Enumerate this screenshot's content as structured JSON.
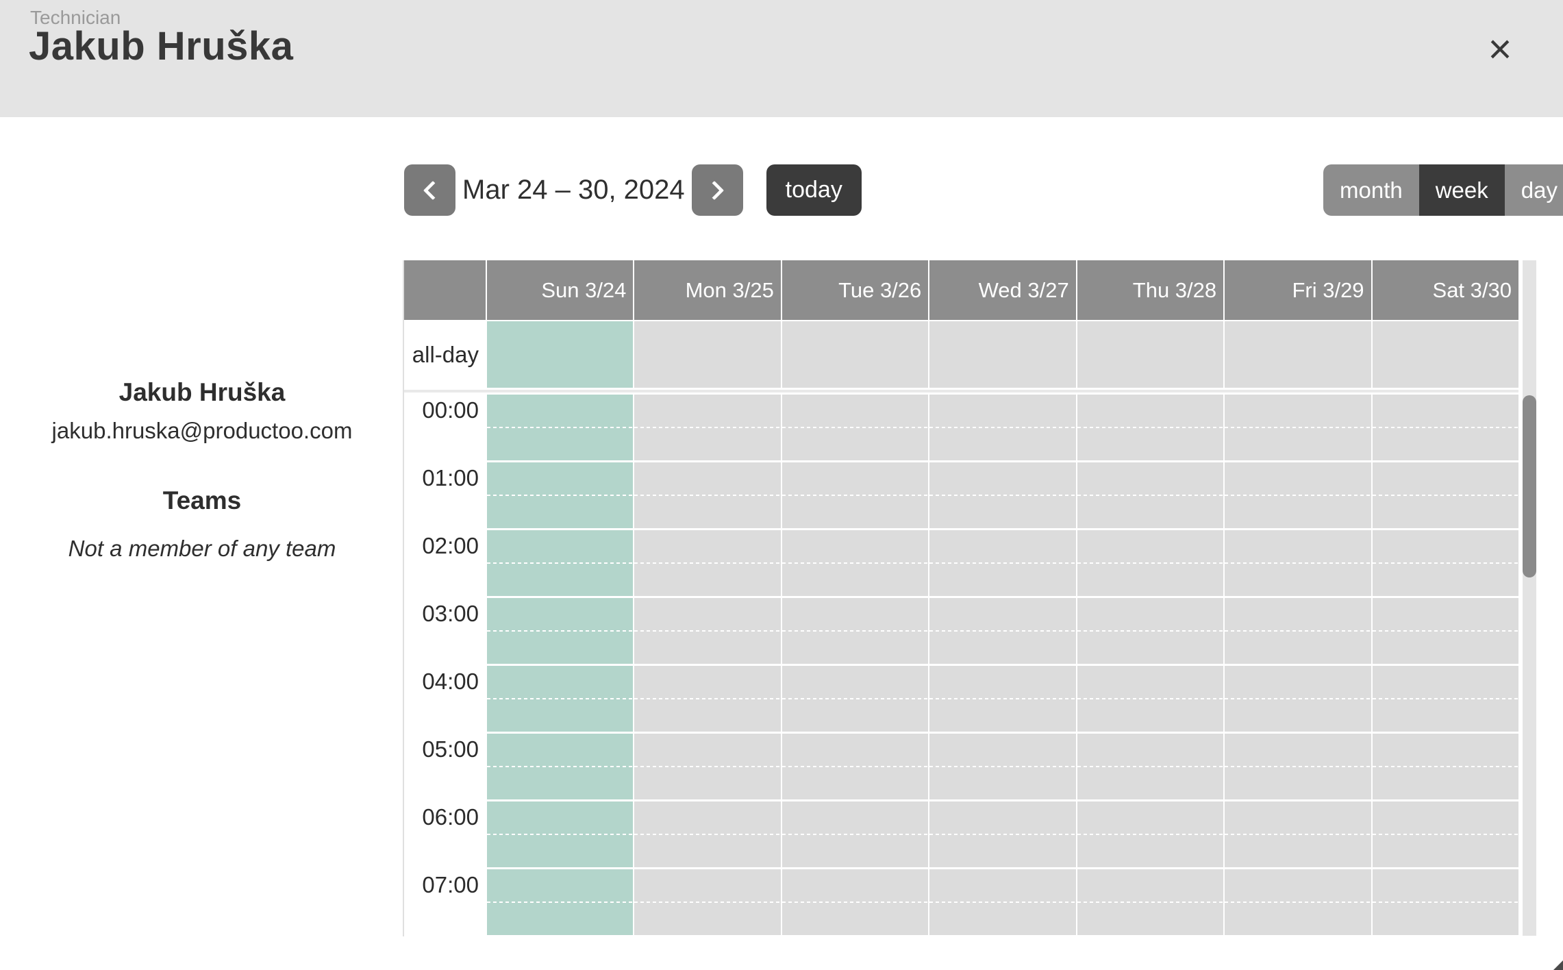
{
  "header": {
    "eyebrow": "Technician",
    "title": "Jakub Hruška"
  },
  "icons": {
    "close": "×",
    "prev": "chevron-left",
    "next": "chevron-right",
    "resize": "diagonal-resize-grip"
  },
  "profile": {
    "name": "Jakub Hruška",
    "email": "jakub.hruska@productoo.com",
    "teams_heading": "Teams",
    "teams_empty": "Not a member of any team"
  },
  "calendar": {
    "toolbar": {
      "title": "Mar 24 – 30, 2024",
      "today_label": "today",
      "views": [
        {
          "label": "month",
          "active": false
        },
        {
          "label": "week",
          "active": true
        },
        {
          "label": "day",
          "active": false
        }
      ]
    },
    "grid": {
      "all_day_label": "all-day",
      "days": [
        {
          "label": "Sun 3/24",
          "highlight": true
        },
        {
          "label": "Mon 3/25",
          "highlight": false
        },
        {
          "label": "Tue 3/26",
          "highlight": false
        },
        {
          "label": "Wed 3/27",
          "highlight": false
        },
        {
          "label": "Thu 3/28",
          "highlight": false
        },
        {
          "label": "Fri 3/29",
          "highlight": false
        },
        {
          "label": "Sat 3/30",
          "highlight": false
        }
      ],
      "hours": [
        "00:00",
        "01:00",
        "02:00",
        "03:00",
        "04:00",
        "05:00",
        "06:00",
        "07:00"
      ]
    }
  },
  "colors": {
    "header_bg": "#e4e4e4",
    "muted_text": "#9a9a9a",
    "dark_text": "#383838",
    "nav_button": "#7a7a7a",
    "dark_button": "#3b3b3b",
    "toggle_button": "#8d8d8d",
    "grid_header_bg": "#8d8d8d",
    "highlight": "#b3d5cb",
    "cell": "#dcdcdc",
    "scroll_track": "#e3e3e3",
    "scroll_thumb": "#8a8a8a"
  }
}
